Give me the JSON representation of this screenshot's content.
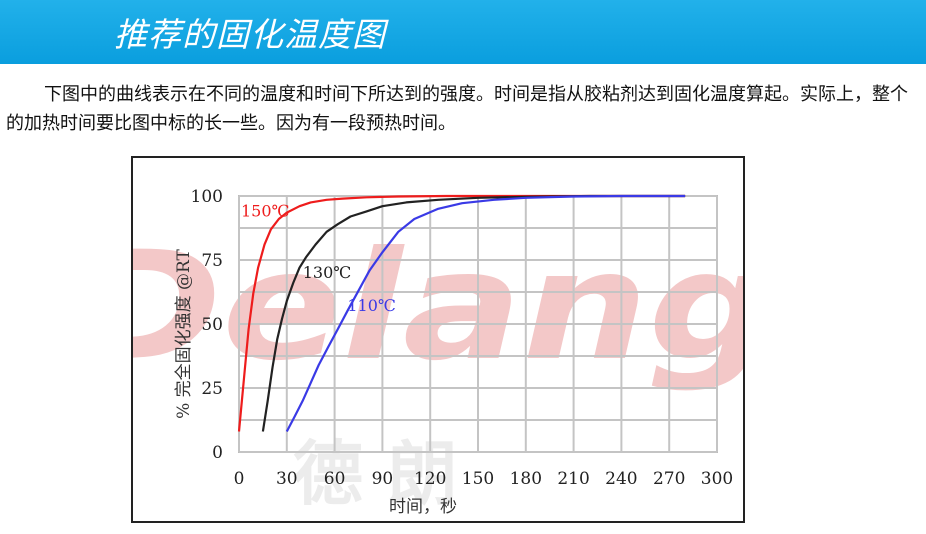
{
  "header": {
    "title": "推荐的固化温度图"
  },
  "intro": {
    "text": "下图中的曲线表示在不同的温度和时间下所达到的强度。时间是指从胶粘剂达到固化温度算起。实际上，整个的加热时间要比图中标的长一些。因为有一段预热时间。"
  },
  "watermark": {
    "brand": "Delang",
    "registered": "®",
    "cn": "德 朗"
  },
  "chart_data": {
    "type": "line",
    "xlabel": "时间，秒",
    "ylabel": "% 完全固化强度 @RT",
    "xlim": [
      0,
      300
    ],
    "ylim": [
      0,
      100
    ],
    "xticks": [
      "0",
      "30",
      "60",
      "90",
      "120",
      "150",
      "180",
      "210",
      "240",
      "270",
      "300"
    ],
    "yticks": [
      "0",
      "25",
      "50",
      "75",
      "100"
    ],
    "grid": true,
    "series": [
      {
        "name": "150℃",
        "color": "#ee1c1c",
        "x": [
          0,
          3,
          6,
          9,
          12,
          16,
          20,
          25,
          30,
          38,
          45,
          55,
          65,
          80,
          100,
          130,
          170,
          220,
          280
        ],
        "y": [
          8,
          28,
          48,
          62,
          72,
          81,
          87,
          91,
          93.5,
          96,
          97.5,
          98.5,
          99,
          99.5,
          99.8,
          100,
          100,
          100,
          100
        ]
      },
      {
        "name": "130℃",
        "color": "#222222",
        "x": [
          15,
          18,
          21,
          24,
          27,
          30,
          34,
          38,
          42,
          48,
          55,
          62,
          70,
          80,
          90,
          105,
          125,
          150,
          180,
          220,
          280
        ],
        "y": [
          8,
          20,
          33,
          44,
          52,
          59,
          66,
          72,
          76,
          81,
          86,
          89,
          92,
          94,
          96,
          97.5,
          98.5,
          99.3,
          99.7,
          100,
          100
        ]
      },
      {
        "name": "110℃",
        "color": "#3a3ae6",
        "x": [
          30,
          35,
          40,
          45,
          50,
          56,
          62,
          68,
          75,
          82,
          90,
          100,
          110,
          125,
          140,
          160,
          180,
          210,
          240,
          280
        ],
        "y": [
          8,
          14,
          20,
          27,
          34,
          41,
          48,
          55,
          63,
          71,
          78,
          86,
          91,
          95,
          97.2,
          98.5,
          99.3,
          99.8,
          100,
          100
        ]
      }
    ]
  }
}
